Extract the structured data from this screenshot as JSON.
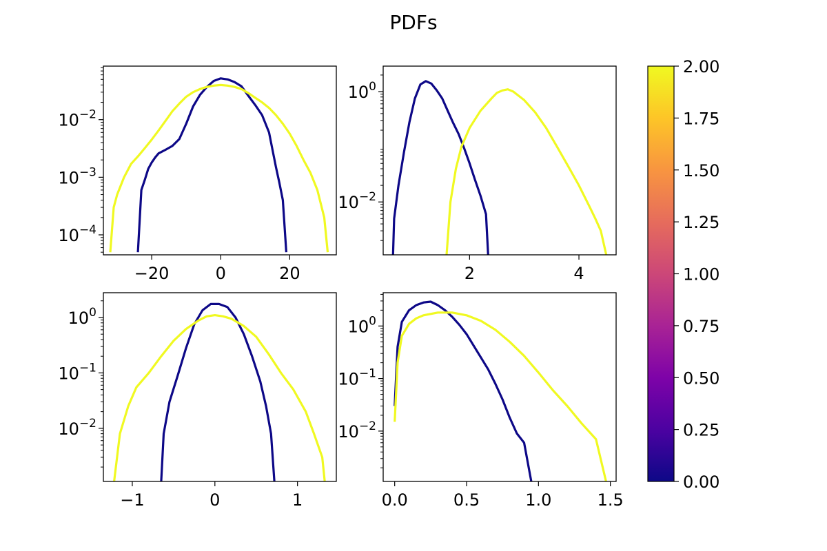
{
  "figure": {
    "title": "PDFs"
  },
  "colorbar": {
    "cmap": "plasma",
    "min": 0.0,
    "max": 2.0,
    "ticks": [
      "0.00",
      "0.25",
      "0.50",
      "0.75",
      "1.00",
      "1.25",
      "1.50",
      "1.75",
      "2.00"
    ]
  },
  "chart_data": [
    {
      "type": "line",
      "yscale": "log",
      "xlim": [
        -34,
        33.5
      ],
      "ylim": [
        4.5e-05,
        0.085
      ],
      "xticks": [
        {
          "v": -20,
          "label": "−20"
        },
        {
          "v": 0,
          "label": "0"
        },
        {
          "v": 20,
          "label": "20"
        }
      ],
      "yticks": [
        {
          "v": 0.0001,
          "m": "10",
          "e": "−4"
        },
        {
          "v": 0.001,
          "m": "10",
          "e": "−3"
        },
        {
          "v": 0.01,
          "m": "10",
          "e": "−2"
        }
      ],
      "series": [
        {
          "color": "#0d0887",
          "points": [
            [
              -24,
              5e-05
            ],
            [
              -23,
              0.0006
            ],
            [
              -22,
              0.0009
            ],
            [
              -21,
              0.0014
            ],
            [
              -20,
              0.0018
            ],
            [
              -19,
              0.0022
            ],
            [
              -18,
              0.0026
            ],
            [
              -16,
              0.003
            ],
            [
              -14,
              0.0035
            ],
            [
              -12,
              0.0046
            ],
            [
              -10,
              0.0085
            ],
            [
              -8,
              0.017
            ],
            [
              -6,
              0.027
            ],
            [
              -4,
              0.037
            ],
            [
              -2,
              0.047
            ],
            [
              0,
              0.052
            ],
            [
              2,
              0.05
            ],
            [
              4,
              0.045
            ],
            [
              6,
              0.038
            ],
            [
              8,
              0.026
            ],
            [
              10,
              0.018
            ],
            [
              12,
              0.012
            ],
            [
              14,
              0.006
            ],
            [
              15,
              0.003
            ],
            [
              16,
              0.0015
            ],
            [
              17,
              0.0008
            ],
            [
              18,
              0.0004
            ],
            [
              19,
              5e-05
            ]
          ]
        },
        {
          "color": "#f0f921",
          "points": [
            [
              -32,
              5e-05
            ],
            [
              -31,
              0.0003
            ],
            [
              -30,
              0.0005
            ],
            [
              -28,
              0.001
            ],
            [
              -26,
              0.0017
            ],
            [
              -24,
              0.0023
            ],
            [
              -22,
              0.0032
            ],
            [
              -20,
              0.0045
            ],
            [
              -18,
              0.0065
            ],
            [
              -16,
              0.0095
            ],
            [
              -14,
              0.014
            ],
            [
              -12,
              0.019
            ],
            [
              -10,
              0.025
            ],
            [
              -8,
              0.03
            ],
            [
              -6,
              0.034
            ],
            [
              -4,
              0.037
            ],
            [
              -2,
              0.039
            ],
            [
              0,
              0.04
            ],
            [
              2,
              0.039
            ],
            [
              4,
              0.037
            ],
            [
              6,
              0.034
            ],
            [
              8,
              0.029
            ],
            [
              10,
              0.024
            ],
            [
              12,
              0.02
            ],
            [
              14,
              0.016
            ],
            [
              16,
              0.012
            ],
            [
              18,
              0.0085
            ],
            [
              20,
              0.0057
            ],
            [
              22,
              0.0035
            ],
            [
              24,
              0.002
            ],
            [
              26,
              0.0012
            ],
            [
              28,
              0.0006
            ],
            [
              30,
              0.0002
            ],
            [
              31,
              5e-05
            ]
          ]
        }
      ]
    },
    {
      "type": "line",
      "yscale": "log",
      "xlim": [
        0.42,
        4.68
      ],
      "ylim": [
        0.0011,
        2.9
      ],
      "xticks": [
        {
          "v": 2,
          "label": "2"
        },
        {
          "v": 4,
          "label": "4"
        }
      ],
      "yticks": [
        {
          "v": 0.01,
          "m": "10",
          "e": "−2"
        },
        {
          "v": 1,
          "m": "10",
          "e": "0"
        }
      ],
      "series": [
        {
          "color": "#0d0887",
          "points": [
            [
              0.6,
              0.0011
            ],
            [
              0.62,
              0.005
            ],
            [
              0.7,
              0.02
            ],
            [
              0.8,
              0.08
            ],
            [
              0.9,
              0.28
            ],
            [
              1.0,
              0.75
            ],
            [
              1.1,
              1.35
            ],
            [
              1.2,
              1.55
            ],
            [
              1.3,
              1.4
            ],
            [
              1.4,
              1.05
            ],
            [
              1.5,
              0.75
            ],
            [
              1.6,
              0.45
            ],
            [
              1.7,
              0.27
            ],
            [
              1.8,
              0.17
            ],
            [
              1.9,
              0.095
            ],
            [
              2.0,
              0.05
            ],
            [
              2.1,
              0.025
            ],
            [
              2.2,
              0.013
            ],
            [
              2.3,
              0.006
            ],
            [
              2.34,
              0.0011
            ]
          ]
        },
        {
          "color": "#f0f921",
          "points": [
            [
              1.58,
              0.0011
            ],
            [
              1.65,
              0.01
            ],
            [
              1.75,
              0.04
            ],
            [
              1.85,
              0.1
            ],
            [
              2.0,
              0.22
            ],
            [
              2.2,
              0.45
            ],
            [
              2.4,
              0.75
            ],
            [
              2.5,
              0.95
            ],
            [
              2.6,
              1.05
            ],
            [
              2.7,
              1.1
            ],
            [
              2.8,
              1.0
            ],
            [
              3.0,
              0.7
            ],
            [
              3.2,
              0.42
            ],
            [
              3.4,
              0.22
            ],
            [
              3.6,
              0.1
            ],
            [
              3.8,
              0.045
            ],
            [
              4.0,
              0.02
            ],
            [
              4.2,
              0.008
            ],
            [
              4.3,
              0.005
            ],
            [
              4.4,
              0.003
            ],
            [
              4.5,
              0.0011
            ]
          ]
        }
      ]
    },
    {
      "type": "line",
      "yscale": "log",
      "xlim": [
        -1.35,
        1.47
      ],
      "ylim": [
        0.0011,
        2.8
      ],
      "xticks": [
        {
          "v": -1,
          "label": "−1"
        },
        {
          "v": 0,
          "label": "0"
        },
        {
          "v": 1,
          "label": "1"
        }
      ],
      "yticks": [
        {
          "v": 0.01,
          "m": "10",
          "e": "−2"
        },
        {
          "v": 0.1,
          "m": "10",
          "e": "−1"
        },
        {
          "v": 1,
          "m": "10",
          "e": "0"
        }
      ],
      "series": [
        {
          "color": "#0d0887",
          "points": [
            [
              -0.65,
              0.0011
            ],
            [
              -0.62,
              0.008
            ],
            [
              -0.55,
              0.03
            ],
            [
              -0.45,
              0.09
            ],
            [
              -0.35,
              0.28
            ],
            [
              -0.25,
              0.75
            ],
            [
              -0.15,
              1.35
            ],
            [
              -0.05,
              1.75
            ],
            [
              0.05,
              1.75
            ],
            [
              0.15,
              1.55
            ],
            [
              0.25,
              1.0
            ],
            [
              0.35,
              0.5
            ],
            [
              0.45,
              0.2
            ],
            [
              0.55,
              0.07
            ],
            [
              0.62,
              0.025
            ],
            [
              0.68,
              0.008
            ],
            [
              0.72,
              0.0011
            ]
          ]
        },
        {
          "color": "#f0f921",
          "points": [
            [
              -1.22,
              0.0011
            ],
            [
              -1.15,
              0.008
            ],
            [
              -1.05,
              0.025
            ],
            [
              -0.95,
              0.055
            ],
            [
              -0.8,
              0.1
            ],
            [
              -0.65,
              0.2
            ],
            [
              -0.5,
              0.38
            ],
            [
              -0.35,
              0.62
            ],
            [
              -0.2,
              0.88
            ],
            [
              -0.1,
              1.05
            ],
            [
              0,
              1.1
            ],
            [
              0.1,
              1.05
            ],
            [
              0.2,
              0.95
            ],
            [
              0.35,
              0.7
            ],
            [
              0.5,
              0.45
            ],
            [
              0.65,
              0.22
            ],
            [
              0.8,
              0.1
            ],
            [
              0.95,
              0.05
            ],
            [
              1.1,
              0.02
            ],
            [
              1.2,
              0.008
            ],
            [
              1.3,
              0.003
            ],
            [
              1.33,
              0.0011
            ]
          ]
        }
      ]
    },
    {
      "type": "line",
      "yscale": "log",
      "xlim": [
        -0.08,
        1.54
      ],
      "ylim": [
        0.0011,
        4.3
      ],
      "xticks": [
        {
          "v": 0.0,
          "label": "0.0"
        },
        {
          "v": 0.5,
          "label": "0.5"
        },
        {
          "v": 1.0,
          "label": "1.0"
        },
        {
          "v": 1.5,
          "label": "1.5"
        }
      ],
      "yticks": [
        {
          "v": 0.01,
          "m": "10",
          "e": "−2"
        },
        {
          "v": 0.1,
          "m": "10",
          "e": "−1"
        },
        {
          "v": 1,
          "m": "10",
          "e": "0"
        }
      ],
      "series": [
        {
          "color": "#0d0887",
          "points": [
            [
              0.0,
              0.03
            ],
            [
              0.02,
              0.4
            ],
            [
              0.05,
              1.2
            ],
            [
              0.1,
              2.0
            ],
            [
              0.15,
              2.5
            ],
            [
              0.2,
              2.8
            ],
            [
              0.25,
              2.9
            ],
            [
              0.3,
              2.5
            ],
            [
              0.35,
              2.0
            ],
            [
              0.4,
              1.5
            ],
            [
              0.45,
              1.05
            ],
            [
              0.5,
              0.7
            ],
            [
              0.55,
              0.42
            ],
            [
              0.6,
              0.25
            ],
            [
              0.65,
              0.15
            ],
            [
              0.7,
              0.08
            ],
            [
              0.75,
              0.04
            ],
            [
              0.8,
              0.018
            ],
            [
              0.85,
              0.009
            ],
            [
              0.9,
              0.006
            ],
            [
              0.95,
              0.0011
            ]
          ]
        },
        {
          "color": "#f0f921",
          "points": [
            [
              0.0,
              0.015
            ],
            [
              0.02,
              0.2
            ],
            [
              0.05,
              0.65
            ],
            [
              0.1,
              1.1
            ],
            [
              0.15,
              1.4
            ],
            [
              0.2,
              1.6
            ],
            [
              0.3,
              1.8
            ],
            [
              0.4,
              1.8
            ],
            [
              0.5,
              1.6
            ],
            [
              0.6,
              1.25
            ],
            [
              0.7,
              0.85
            ],
            [
              0.8,
              0.5
            ],
            [
              0.9,
              0.27
            ],
            [
              1.0,
              0.13
            ],
            [
              1.1,
              0.06
            ],
            [
              1.2,
              0.03
            ],
            [
              1.3,
              0.014
            ],
            [
              1.4,
              0.007
            ],
            [
              1.47,
              0.0011
            ]
          ]
        }
      ]
    }
  ]
}
